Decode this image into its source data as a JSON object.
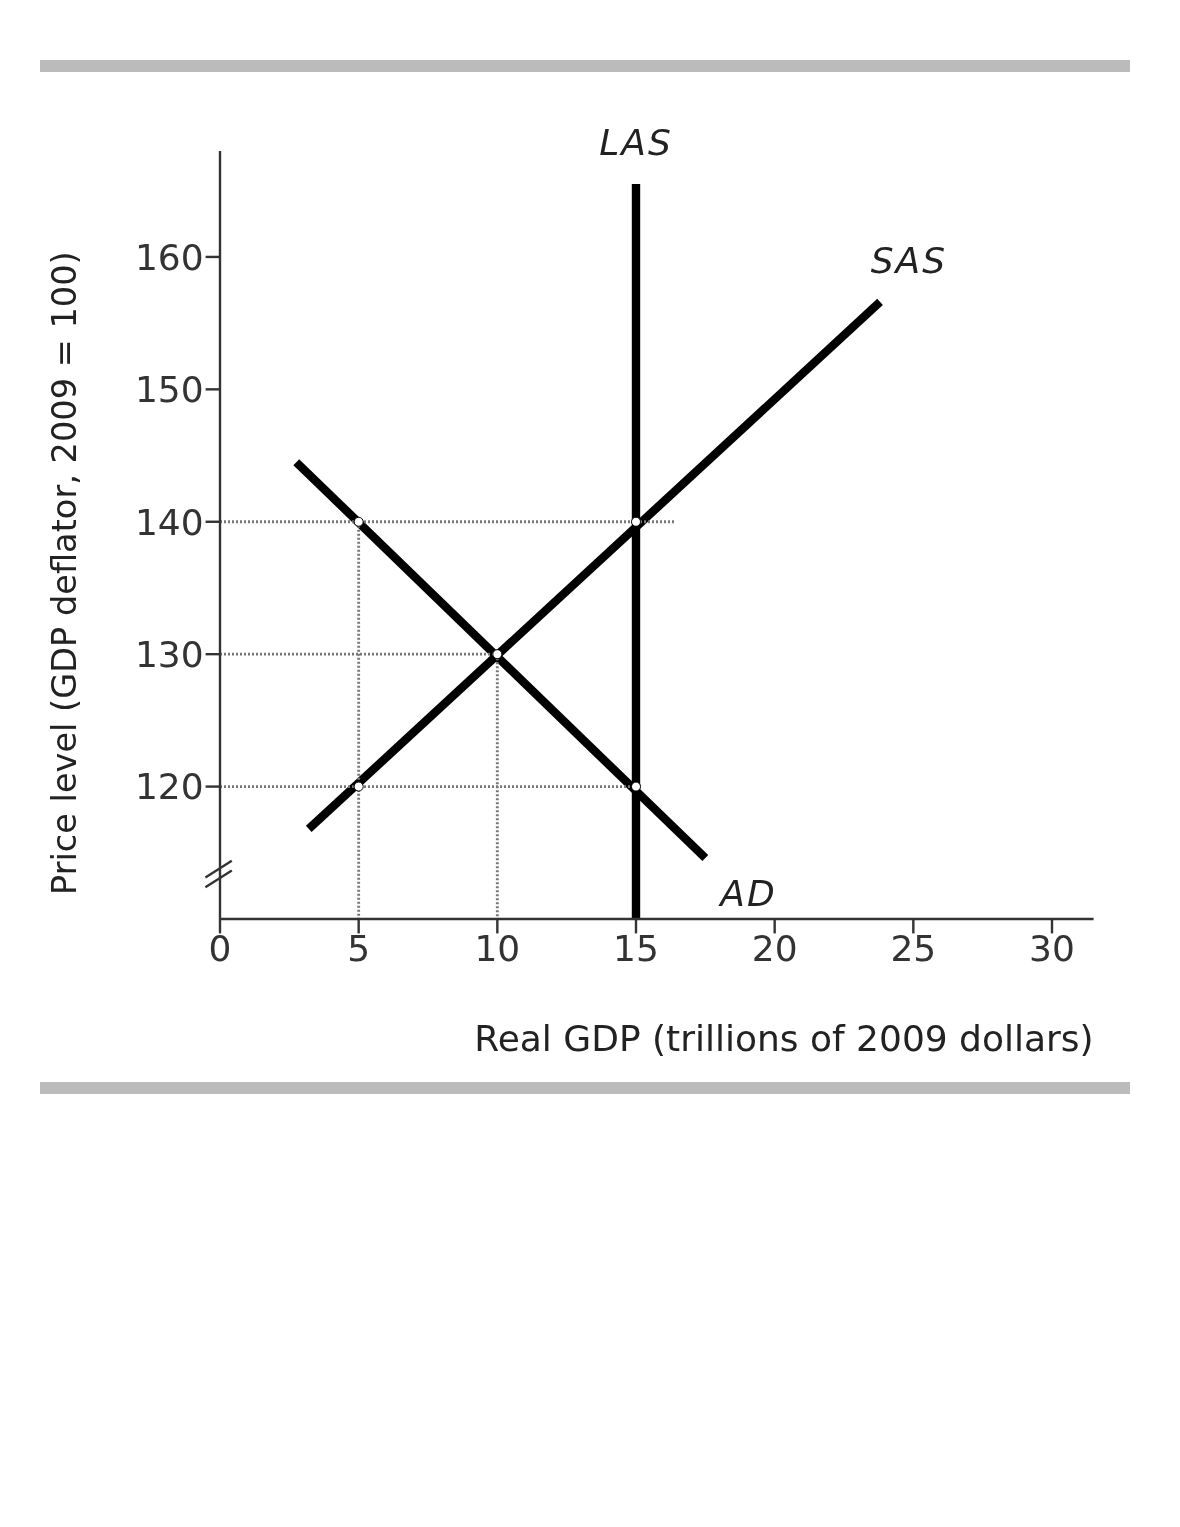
{
  "chart_data": {
    "type": "line",
    "xlabel": "Real GDP (trillions of 2009 dollars)",
    "ylabel": "Price level (GDP deflator, 2009 = 100)",
    "xlim": [
      0,
      31.5
    ],
    "xticks": [
      0,
      5,
      10,
      15,
      20,
      25,
      30
    ],
    "ylim": [
      110,
      168
    ],
    "yticks": [
      120,
      130,
      140,
      150,
      160
    ],
    "grid": false,
    "legend": false,
    "marker": "none",
    "line_style": "solid",
    "series": [
      {
        "name": "LAS",
        "color": "#000000",
        "x": [
          15,
          15
        ],
        "values": [
          110,
          165.5
        ]
      },
      {
        "name": "SAS",
        "color": "#000000",
        "x": [
          3.2,
          23.8
        ],
        "values": [
          116.8,
          156.6
        ]
      },
      {
        "name": "AD",
        "color": "#000000",
        "x": [
          2.75,
          17.5
        ],
        "values": [
          144.5,
          114.6
        ]
      },
      {
        "color": "#777777",
        "line_style": "dotted",
        "x": [
          0,
          16.4
        ],
        "values": [
          140,
          140
        ]
      },
      {
        "color": "#777777",
        "line_style": "dotted",
        "x": [
          0,
          10
        ],
        "values": [
          130,
          130
        ]
      },
      {
        "color": "#777777",
        "line_style": "dotted",
        "x": [
          0,
          15
        ],
        "values": [
          120,
          120
        ]
      },
      {
        "color": "#777777",
        "line_style": "dotted",
        "x": [
          5,
          5
        ],
        "values": [
          140,
          110
        ]
      },
      {
        "color": "#777777",
        "line_style": "dotted",
        "x": [
          10,
          10
        ],
        "values": [
          130,
          110
        ]
      },
      {
        "type": "scatter",
        "color": "#000000",
        "marker": "circle",
        "x": [
          5,
          15,
          10,
          5,
          15
        ],
        "values": [
          140,
          140,
          130,
          120,
          120
        ]
      }
    ]
  }
}
